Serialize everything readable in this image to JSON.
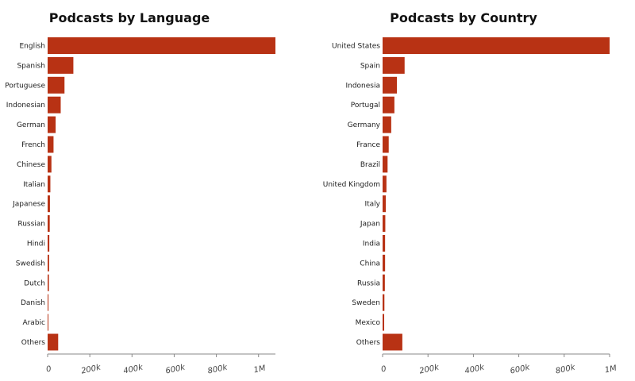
{
  "chart_data": [
    {
      "type": "bar",
      "orientation": "horizontal",
      "title": "Podcasts by Language",
      "xlabel": "",
      "ylabel": "",
      "xlim": [
        0,
        1080000
      ],
      "grid": false,
      "legend": "none",
      "bar_color": "#b83214",
      "categories": [
        "English",
        "Spanish",
        "Portuguese",
        "Indonesian",
        "German",
        "French",
        "Chinese",
        "Italian",
        "Japanese",
        "Russian",
        "Hindi",
        "Swedish",
        "Dutch",
        "Danish",
        "Arabic",
        "Others"
      ],
      "values": [
        1080000,
        122000,
        80000,
        62000,
        38000,
        28000,
        18000,
        13000,
        11000,
        10000,
        8000,
        7000,
        6000,
        4000,
        3000,
        50000
      ],
      "x_ticks": [
        0,
        200000,
        400000,
        600000,
        800000,
        1000000
      ],
      "x_tick_labels": [
        "0",
        "200k",
        "400k",
        "600k",
        "800k",
        "1M"
      ]
    },
    {
      "type": "bar",
      "orientation": "horizontal",
      "title": "Podcasts by Country",
      "xlabel": "",
      "ylabel": "",
      "xlim": [
        0,
        1000000
      ],
      "grid": false,
      "legend": "none",
      "bar_color": "#b83214",
      "categories": [
        "United States",
        "Spain",
        "Indonesia",
        "Portugal",
        "Germany",
        "France",
        "Brazil",
        "United Kingdom",
        "Italy",
        "Japan",
        "India",
        "China",
        "Russia",
        "Sweden",
        "Mexico",
        "Others"
      ],
      "values": [
        1000000,
        97000,
        63000,
        52000,
        38000,
        27000,
        22000,
        17000,
        14000,
        12000,
        11000,
        11000,
        10000,
        8000,
        7000,
        87000
      ],
      "x_ticks": [
        0,
        200000,
        400000,
        600000,
        800000,
        1000000
      ],
      "x_tick_labels": [
        "0",
        "200k",
        "400k",
        "600k",
        "800k",
        "1M"
      ]
    }
  ]
}
